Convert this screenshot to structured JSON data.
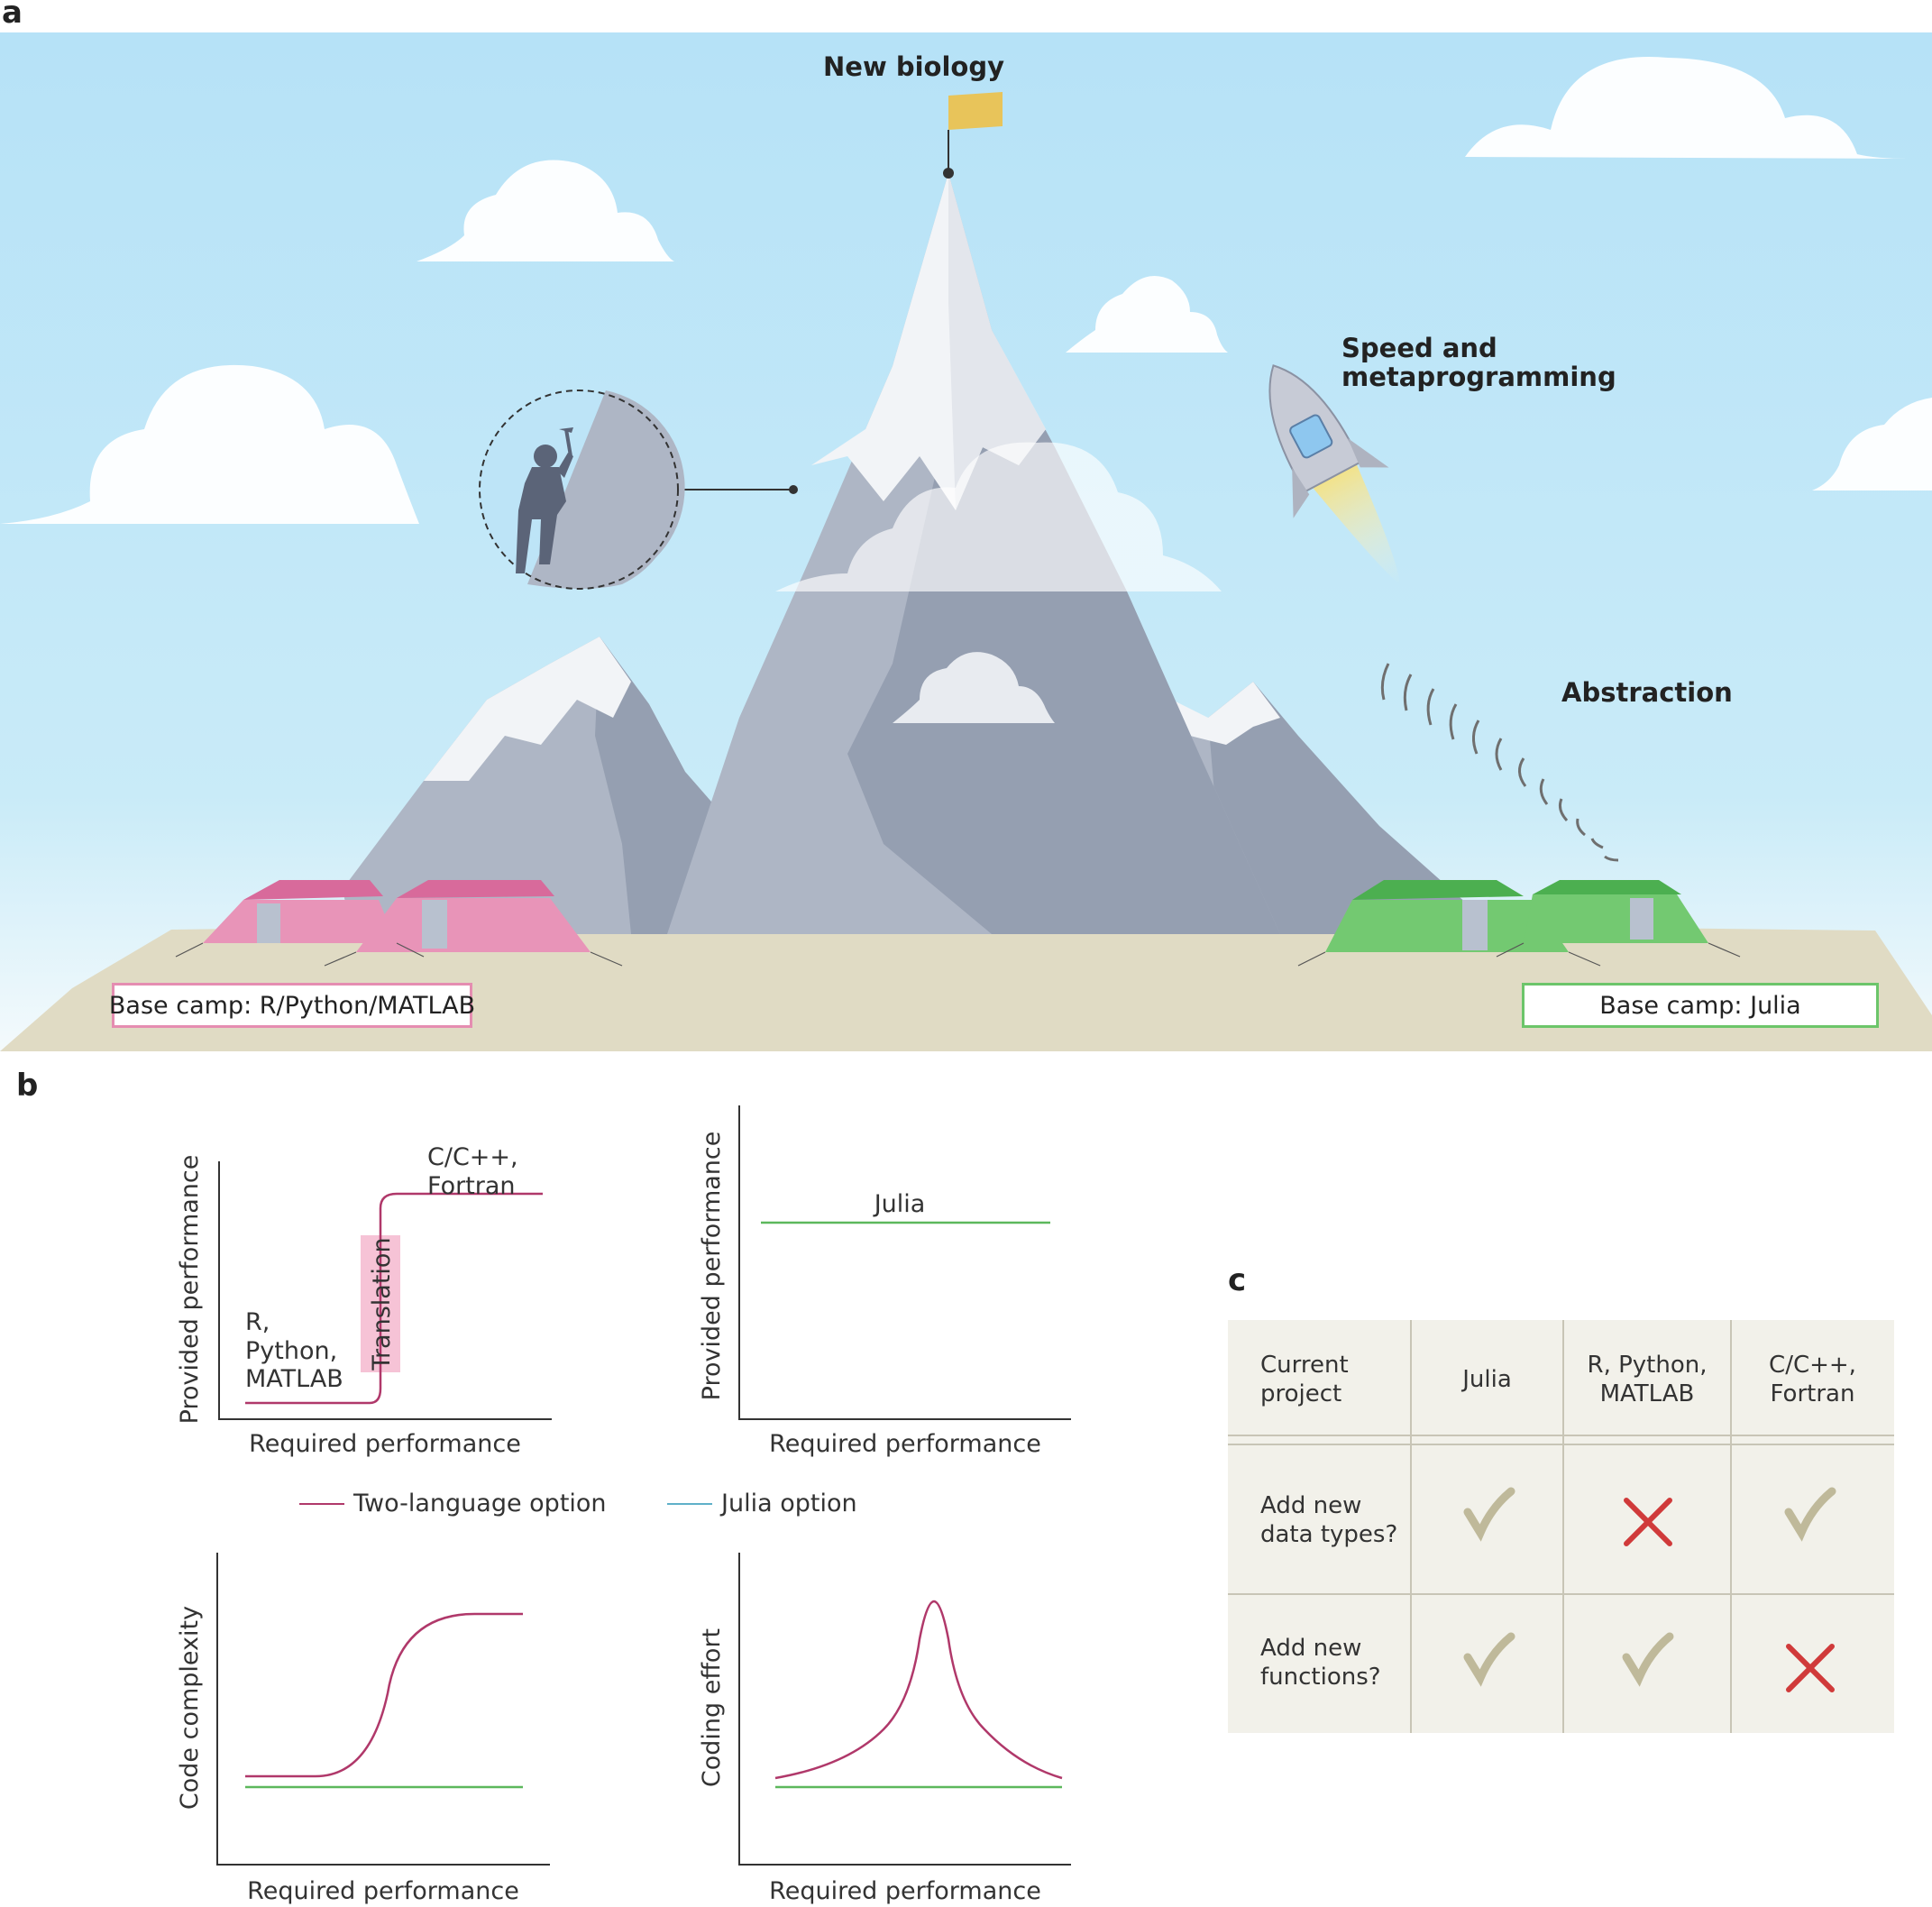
{
  "panels": {
    "a": "a",
    "b": "b",
    "c": "c"
  },
  "scene": {
    "summit_label": "New biology",
    "rocket_label_line1": "Speed and",
    "rocket_label_line2": "metaprogramming",
    "abstraction_label": "Abstraction",
    "camp_left": "Base camp: R/Python/MATLAB",
    "camp_right": "Base camp: Julia",
    "colors": {
      "sky": "#bde4f7",
      "ground": "#e0dbc4",
      "mountain": "#aeb6c5",
      "mountain_dark": "#959fb1",
      "snow": "#f2f4f7",
      "tent_pink": "#e58db1",
      "tent_green": "#6cc56a",
      "flag": "#e8c45a"
    }
  },
  "colors": {
    "two_language": "#b0386a",
    "julia": "#5cb85c",
    "julia_legend": "#5fb0c9",
    "axis": "#333333",
    "translation_band": "#f6c3d6",
    "check": "#bfb99a",
    "cross": "#d03a3a"
  },
  "chart_data": [
    {
      "type": "line",
      "xlabel": "Required performance",
      "ylabel": "Provided performance",
      "series": [
        {
          "name": "Two-language option",
          "shape": "step",
          "low_label": "R, Python, MATLAB",
          "high_label": "C/C++, Fortran",
          "step_label": "Translation"
        }
      ],
      "text": {
        "low_lines": [
          "R,",
          "Python,",
          "MATLAB"
        ],
        "high_lines": [
          "C/C++,",
          "Fortran"
        ],
        "step": "Translation"
      }
    },
    {
      "type": "line",
      "xlabel": "Required performance",
      "ylabel": "Provided performance",
      "series": [
        {
          "name": "Julia option",
          "shape": "flat",
          "label": "Julia"
        }
      ],
      "text": {
        "julia": "Julia"
      }
    },
    {
      "type": "line",
      "xlabel": "Required performance",
      "ylabel": "Code complexity",
      "series": [
        {
          "name": "Two-language option",
          "shape": "sigmoid"
        },
        {
          "name": "Julia option",
          "shape": "flat"
        }
      ]
    },
    {
      "type": "line",
      "xlabel": "Required performance",
      "ylabel": "Coding effort",
      "series": [
        {
          "name": "Two-language option",
          "shape": "peak"
        },
        {
          "name": "Julia option",
          "shape": "flat"
        }
      ]
    }
  ],
  "legend": {
    "two_language": "Two-language option",
    "julia": "Julia option"
  },
  "table": {
    "header": {
      "project_lines": [
        "Current",
        "project"
      ],
      "julia": "Julia",
      "rpy_lines": [
        "R, Python,",
        "MATLAB"
      ],
      "cpp_lines": [
        "C/C++,",
        "Fortran"
      ]
    },
    "rows": [
      {
        "label_lines": [
          "Add new",
          "data types?"
        ],
        "julia": "check",
        "rpy": "cross",
        "cpp": "check"
      },
      {
        "label_lines": [
          "Add new",
          "functions?"
        ],
        "julia": "check",
        "rpy": "check",
        "cpp": "cross"
      }
    ]
  }
}
